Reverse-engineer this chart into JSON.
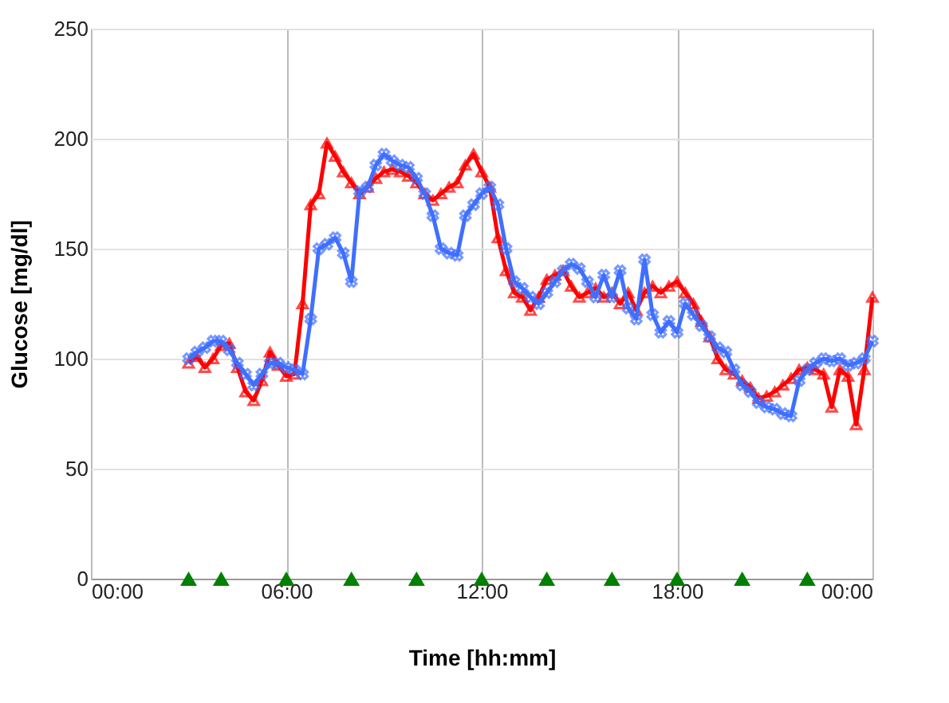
{
  "chart_data": {
    "type": "line",
    "xlabel": "Time [hh:mm]",
    "ylabel": "Glucose [mg/dl]",
    "x": [
      3,
      3.25,
      3.5,
      3.75,
      4,
      4.25,
      4.5,
      4.75,
      5,
      5.25,
      5.5,
      5.75,
      6,
      6.25,
      6.5,
      6.75,
      7,
      7.25,
      7.5,
      7.75,
      8,
      8.25,
      8.5,
      8.75,
      9,
      9.25,
      9.5,
      9.75,
      10,
      10.25,
      10.5,
      10.75,
      11,
      11.25,
      11.5,
      11.75,
      12,
      12.25,
      12.5,
      12.75,
      13,
      13.25,
      13.5,
      13.75,
      14,
      14.25,
      14.5,
      14.75,
      15,
      15.25,
      15.5,
      15.75,
      16,
      16.25,
      16.5,
      16.75,
      17,
      17.25,
      17.5,
      17.75,
      18,
      18.25,
      18.5,
      18.75,
      19,
      19.25,
      19.5,
      19.75,
      20,
      20.25,
      20.5,
      20.75,
      21,
      21.25,
      21.5,
      21.75,
      22,
      22.25,
      22.5,
      22.75,
      23,
      23.25,
      23.5,
      23.75,
      24
    ],
    "series": [
      {
        "type": "line",
        "color": "#ff0000",
        "marker": "triangle",
        "values": [
          98,
          101,
          96,
          100,
          106,
          107,
          96,
          85,
          81,
          90,
          103,
          97,
          92,
          93,
          125,
          170,
          175,
          198,
          192,
          185,
          180,
          175,
          178,
          182,
          185,
          186,
          185,
          183,
          180,
          175,
          172,
          175,
          178,
          180,
          188,
          193,
          185,
          178,
          155,
          140,
          130,
          128,
          122,
          128,
          136,
          138,
          140,
          133,
          128,
          130,
          132,
          128,
          130,
          125,
          130,
          122,
          130,
          133,
          130,
          133,
          135,
          130,
          125,
          117,
          110,
          100,
          95,
          93,
          90,
          87,
          82,
          83,
          85,
          88,
          91,
          95,
          96,
          95,
          93,
          78,
          95,
          92,
          70,
          95,
          128
        ]
      },
      {
        "type": "line",
        "color": "#3f6fff",
        "marker": "cross",
        "values": [
          100,
          103,
          105,
          108,
          108,
          104,
          98,
          93,
          88,
          93,
          98,
          98,
          96,
          95,
          93,
          118,
          150,
          152,
          155,
          148,
          135,
          176,
          178,
          188,
          193,
          190,
          188,
          187,
          182,
          175,
          165,
          150,
          148,
          147,
          165,
          170,
          175,
          178,
          170,
          150,
          135,
          132,
          128,
          125,
          130,
          135,
          140,
          143,
          141,
          135,
          128,
          138,
          128,
          140,
          123,
          118,
          145,
          120,
          112,
          117,
          112,
          125,
          120,
          115,
          110,
          105,
          103,
          95,
          88,
          85,
          80,
          78,
          77,
          75,
          74,
          90,
          95,
          98,
          100,
          99,
          100,
          97,
          98,
          100,
          108
        ]
      },
      {
        "type": "scatter",
        "color": "#008000",
        "marker": "triangle",
        "x": [
          3,
          4,
          6,
          8,
          10,
          12,
          14,
          16,
          18,
          20,
          22
        ],
        "values": [
          0,
          0,
          0,
          0,
          0,
          0,
          0,
          0,
          0,
          0,
          0
        ]
      }
    ],
    "xlim": [
      0,
      24
    ],
    "xticks": [
      {
        "value": 0,
        "label": "00:00"
      },
      {
        "value": 6,
        "label": "06:00"
      },
      {
        "value": 12,
        "label": "12:00"
      },
      {
        "value": 18,
        "label": "18:00"
      },
      {
        "value": 24,
        "label": "00:00"
      }
    ],
    "ylim": [
      0,
      250
    ],
    "yticks": [
      0,
      50,
      100,
      150,
      200,
      250
    ],
    "grid": true,
    "line_style": "solid"
  }
}
